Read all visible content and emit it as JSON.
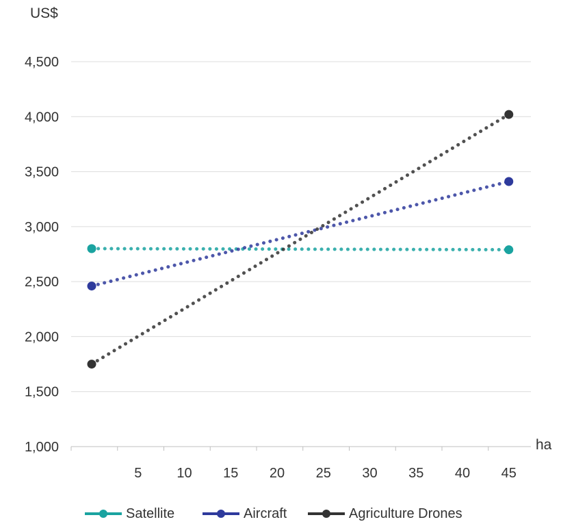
{
  "chart_data": {
    "type": "line",
    "ylabel": "US$",
    "xunit": "ha",
    "x": [
      0,
      45
    ],
    "xticks": [
      5,
      10,
      15,
      20,
      25,
      30,
      35,
      40,
      45
    ],
    "yticks": [
      1000,
      1500,
      2000,
      2500,
      3000,
      3500,
      4000,
      4500
    ],
    "ytick_labels": [
      "1,000",
      "1,500",
      "2,000",
      "2,500",
      "3,000",
      "3,500",
      "4,000",
      "4,500"
    ],
    "xlim": [
      0,
      47
    ],
    "ylim": [
      1000,
      4500
    ],
    "grid": "horizontal",
    "legend_position": "bottom",
    "line_style": "dotted",
    "series": [
      {
        "name": "Satellite",
        "color": "#1aa3a0",
        "points": [
          [
            0,
            2800
          ],
          [
            45,
            2790
          ]
        ]
      },
      {
        "name": "Aircraft",
        "color": "#2e3a9c",
        "points": [
          [
            0,
            2460
          ],
          [
            45,
            3410
          ]
        ]
      },
      {
        "name": "Agriculture Drones",
        "color": "#333333",
        "points": [
          [
            0,
            1750
          ],
          [
            45,
            4020
          ]
        ]
      }
    ]
  }
}
